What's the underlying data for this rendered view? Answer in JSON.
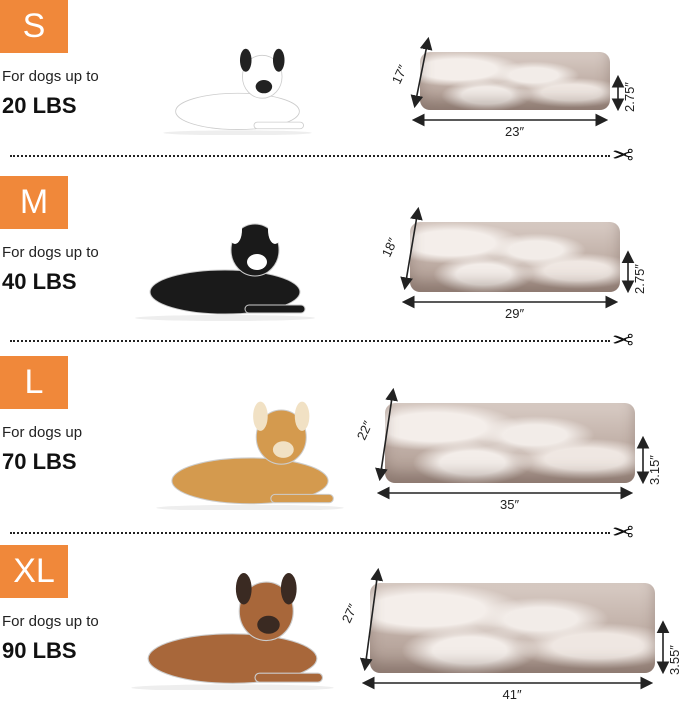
{
  "unit_mark": "″",
  "colors": {
    "badge": "#f0883a",
    "text": "#111111"
  },
  "divider_icon": "scissors-icon",
  "sizes": [
    {
      "size": "S",
      "caption": "For dogs up to",
      "weight": "20 LBS",
      "depth": "17″",
      "width": "23″",
      "height": "2.75″",
      "dog_colors": [
        "#ffffff",
        "#222222"
      ]
    },
    {
      "size": "M",
      "caption": "For dogs up to",
      "weight": "40 LBS",
      "depth": "18″",
      "width": "29″",
      "height": "2.75″",
      "dog_colors": [
        "#1a1a1a",
        "#ffffff"
      ]
    },
    {
      "size": "L",
      "caption": "For dogs up",
      "weight": "70 LBS",
      "depth": "22″",
      "width": "35″",
      "height": "3.15″",
      "dog_colors": [
        "#d49a4e",
        "#f1e1c4"
      ]
    },
    {
      "size": "XL",
      "caption": "For dogs up to",
      "weight": "90 LBS",
      "depth": "27″",
      "width": "41″",
      "height": "3.55″",
      "dog_colors": [
        "#a8673a",
        "#3a2a22"
      ]
    }
  ]
}
